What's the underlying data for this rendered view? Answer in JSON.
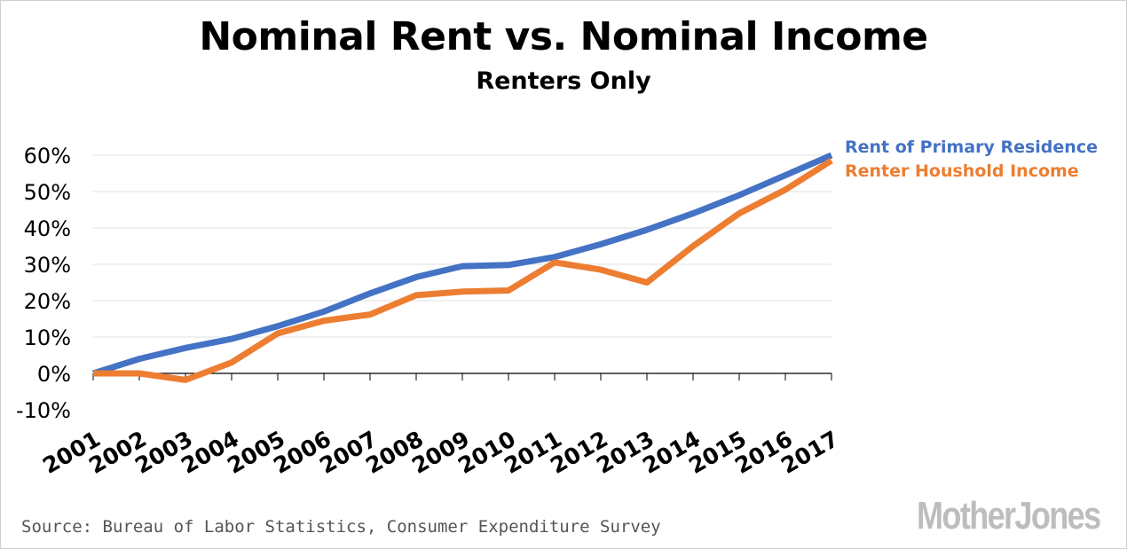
{
  "chart_data": {
    "type": "line",
    "title": "Nominal Rent vs. Nominal Income",
    "subtitle": "Renters Only",
    "x": [
      "2001",
      "2002",
      "2003",
      "2004",
      "2005",
      "2006",
      "2007",
      "2008",
      "2009",
      "2010",
      "2011",
      "2012",
      "2013",
      "2014",
      "2015",
      "2016",
      "2017"
    ],
    "y_ticks": [
      "60%",
      "50%",
      "40%",
      "30%",
      "20%",
      "10%",
      "0%",
      "-10%"
    ],
    "ylim": [
      -10,
      60
    ],
    "grid": true,
    "legend_position": "right",
    "series": [
      {
        "name": "Rent of Primary Residence",
        "color": "#4472c4",
        "values": [
          0,
          4,
          7,
          9.5,
          13,
          17,
          22,
          26.5,
          29.5,
          29.8,
          32,
          35.5,
          39.5,
          44,
          49,
          54.5,
          60
        ]
      },
      {
        "name": "Renter Houshold Income",
        "color": "#ed7d31",
        "values": [
          0,
          0,
          -1.8,
          3,
          11,
          14.5,
          16.2,
          21.5,
          22.5,
          22.8,
          30.5,
          28.5,
          25,
          35,
          44,
          50.5,
          58.5
        ]
      }
    ]
  },
  "footer": {
    "source": "Source: Bureau of Labor Statistics, Consumer Expenditure Survey",
    "logo": "MotherJones"
  }
}
